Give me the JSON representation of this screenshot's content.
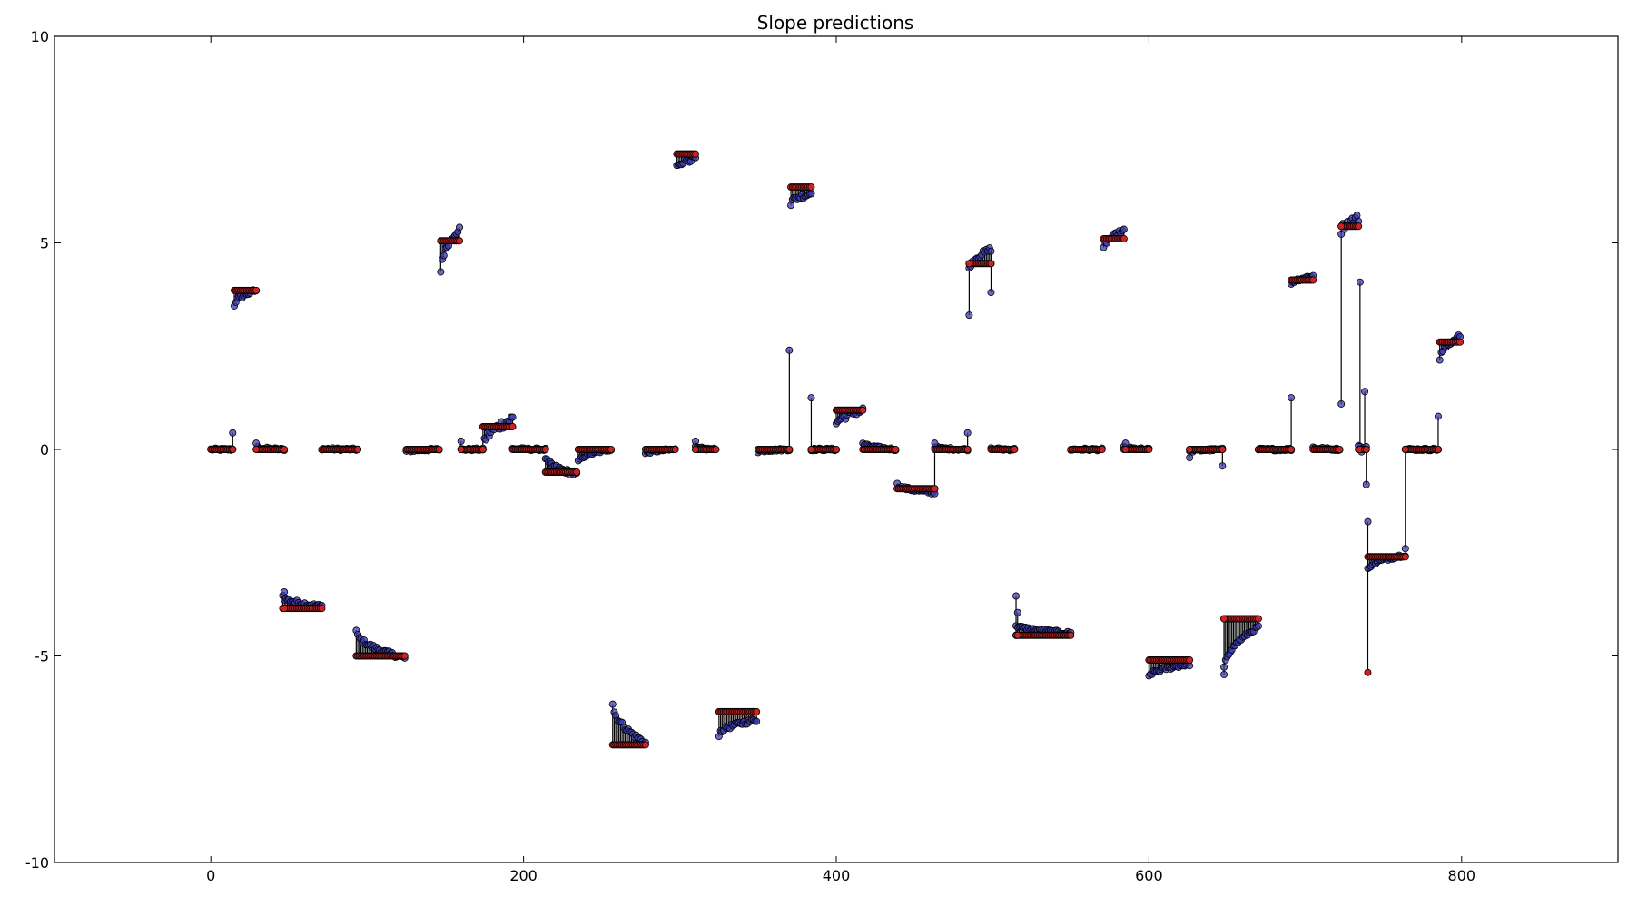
{
  "chart_data": {
    "type": "scatter",
    "title": "Slope predictions",
    "xlabel": "",
    "ylabel": "",
    "xlim": [
      -100,
      900
    ],
    "ylim": [
      -10,
      10
    ],
    "xticks": [
      0,
      200,
      400,
      600,
      800
    ],
    "yticks": [
      -10,
      -5,
      0,
      5,
      10
    ],
    "grid": false,
    "colors": {
      "true": "#cc2222",
      "predicted": "#3b3bb3",
      "stem": "#000000"
    },
    "segments": [
      {
        "x0": 0,
        "x1": 14,
        "value": 0.0,
        "pred_start": 0.0,
        "pred_end": 0.0,
        "noise": 0.03
      },
      {
        "x0": 15,
        "x1": 29,
        "value": 3.85,
        "pred_start": 3.5,
        "pred_end": 3.85,
        "noise": 0.05
      },
      {
        "x0": 30,
        "x1": 47,
        "value": 0.0,
        "pred_start": 0.05,
        "pred_end": 0.0,
        "noise": 0.03
      },
      {
        "x0": 46,
        "x1": 71,
        "value": -3.85,
        "pred_start": -3.55,
        "pred_end": -3.8,
        "noise": 0.05
      },
      {
        "x0": 71,
        "x1": 94,
        "value": 0.0,
        "pred_start": 0.02,
        "pred_end": 0.0,
        "noise": 0.03
      },
      {
        "x0": 93,
        "x1": 124,
        "value": -5.0,
        "pred_start": -4.4,
        "pred_end": -5.05,
        "noise": 0.05
      },
      {
        "x0": 125,
        "x1": 146,
        "value": 0.0,
        "pred_start": -0.05,
        "pred_end": 0.0,
        "noise": 0.03
      },
      {
        "x0": 147,
        "x1": 159,
        "value": 5.05,
        "pred_start": 4.3,
        "pred_end": 5.35,
        "noise": 0.05
      },
      {
        "x0": 160,
        "x1": 174,
        "value": 0.0,
        "pred_start": 0.0,
        "pred_end": 0.0,
        "noise": 0.03
      },
      {
        "x0": 174,
        "x1": 193,
        "value": 0.55,
        "pred_start": 0.05,
        "pred_end": 0.75,
        "noise": 0.12
      },
      {
        "x0": 193,
        "x1": 214,
        "value": 0.0,
        "pred_start": 0.02,
        "pred_end": 0.0,
        "noise": 0.03
      },
      {
        "x0": 214,
        "x1": 234,
        "value": -0.55,
        "pred_start": -0.2,
        "pred_end": -0.6,
        "noise": 0.06
      },
      {
        "x0": 235,
        "x1": 256,
        "value": 0.0,
        "pred_start": -0.3,
        "pred_end": 0.0,
        "noise": 0.03
      },
      {
        "x0": 257,
        "x1": 278,
        "value": -7.15,
        "pred_start": -6.15,
        "pred_end": -7.1,
        "noise": 0.06
      },
      {
        "x0": 278,
        "x1": 297,
        "value": 0.0,
        "pred_start": -0.1,
        "pred_end": 0.0,
        "noise": 0.03
      },
      {
        "x0": 298,
        "x1": 310,
        "value": 7.15,
        "pred_start": 6.85,
        "pred_end": 7.05,
        "noise": 0.06
      },
      {
        "x0": 310,
        "x1": 323,
        "value": 0.0,
        "pred_start": 0.05,
        "pred_end": 0.0,
        "noise": 0.03
      },
      {
        "x0": 325,
        "x1": 349,
        "value": -6.35,
        "pred_start": -6.9,
        "pred_end": -6.55,
        "noise": 0.05
      },
      {
        "x0": 350,
        "x1": 370,
        "value": 0.0,
        "pred_start": -0.05,
        "pred_end": 0.0,
        "noise": 0.03
      },
      {
        "x0": 371,
        "x1": 384,
        "value": 6.35,
        "pred_start": 5.95,
        "pred_end": 6.2,
        "noise": 0.07
      },
      {
        "x0": 384,
        "x1": 400,
        "value": 0.0,
        "pred_start": 0.0,
        "pred_end": 0.0,
        "noise": 0.03
      },
      {
        "x0": 400,
        "x1": 417,
        "value": 0.95,
        "pred_start": 0.6,
        "pred_end": 0.95,
        "noise": 0.08
      },
      {
        "x0": 417,
        "x1": 438,
        "value": 0.0,
        "pred_start": 0.15,
        "pred_end": 0.0,
        "noise": 0.03
      },
      {
        "x0": 439,
        "x1": 463,
        "value": -0.95,
        "pred_start": -0.85,
        "pred_end": -1.05,
        "noise": 0.04
      },
      {
        "x0": 463,
        "x1": 484,
        "value": 0.0,
        "pred_start": 0.05,
        "pred_end": 0.0,
        "noise": 0.03
      },
      {
        "x0": 485,
        "x1": 499,
        "value": 4.5,
        "pred_start": 4.35,
        "pred_end": 4.85,
        "noise": 0.06
      },
      {
        "x0": 499,
        "x1": 514,
        "value": 0.0,
        "pred_start": 0.02,
        "pred_end": 0.0,
        "noise": 0.03
      },
      {
        "x0": 515,
        "x1": 550,
        "value": -4.5,
        "pred_start": -4.25,
        "pred_end": -4.45,
        "noise": 0.04
      },
      {
        "x0": 550,
        "x1": 570,
        "value": 0.0,
        "pred_start": 0.0,
        "pred_end": 0.0,
        "noise": 0.03
      },
      {
        "x0": 571,
        "x1": 584,
        "value": 5.1,
        "pred_start": 4.85,
        "pred_end": 5.3,
        "noise": 0.05
      },
      {
        "x0": 584,
        "x1": 600,
        "value": 0.0,
        "pred_start": 0.05,
        "pred_end": 0.0,
        "noise": 0.03
      },
      {
        "x0": 600,
        "x1": 626,
        "value": -5.1,
        "pred_start": -5.5,
        "pred_end": -5.2,
        "noise": 0.04
      },
      {
        "x0": 626,
        "x1": 647,
        "value": 0.0,
        "pred_start": -0.05,
        "pred_end": 0.0,
        "noise": 0.03
      },
      {
        "x0": 648,
        "x1": 670,
        "value": -4.1,
        "pred_start": -5.3,
        "pred_end": -4.3,
        "noise": 0.04
      },
      {
        "x0": 670,
        "x1": 691,
        "value": 0.0,
        "pred_start": 0.0,
        "pred_end": 0.0,
        "noise": 0.03
      },
      {
        "x0": 691,
        "x1": 705,
        "value": 4.1,
        "pred_start": 4.0,
        "pred_end": 4.2,
        "noise": 0.04
      },
      {
        "x0": 705,
        "x1": 722,
        "value": 0.0,
        "pred_start": 0.05,
        "pred_end": 0.0,
        "noise": 0.03
      },
      {
        "x0": 723,
        "x1": 734,
        "value": 5.4,
        "pred_start": 5.3,
        "pred_end": 5.6,
        "noise": 0.1
      },
      {
        "x0": 734,
        "x1": 739,
        "value": 0.0,
        "pred_start": 0.1,
        "pred_end": 0.0,
        "noise": 0.1
      },
      {
        "x0": 740,
        "x1": 764,
        "value": -2.6,
        "pred_start": -2.9,
        "pred_end": -2.55,
        "noise": 0.04
      },
      {
        "x0": 764,
        "x1": 785,
        "value": 0.0,
        "pred_start": 0.0,
        "pred_end": 0.0,
        "noise": 0.03
      },
      {
        "x0": 786,
        "x1": 799,
        "value": 2.6,
        "pred_start": 2.15,
        "pred_end": 2.75,
        "noise": 0.05
      }
    ],
    "outliers": [
      {
        "x": 14,
        "true": 0.0,
        "pred": 0.4
      },
      {
        "x": 29,
        "true": 0.0,
        "pred": 0.15
      },
      {
        "x": 47,
        "true": -3.85,
        "pred": -3.45
      },
      {
        "x": 160,
        "true": 0.0,
        "pred": 0.2
      },
      {
        "x": 310,
        "true": 0.0,
        "pred": 0.2
      },
      {
        "x": 370,
        "true": 0.0,
        "pred": 2.4
      },
      {
        "x": 384,
        "true": 0.0,
        "pred": 1.25
      },
      {
        "x": 463,
        "true": -0.95,
        "pred": 0.15
      },
      {
        "x": 484,
        "true": 0.0,
        "pred": 0.4
      },
      {
        "x": 485,
        "true": 4.5,
        "pred": 3.25
      },
      {
        "x": 499,
        "true": 4.5,
        "pred": 3.8
      },
      {
        "x": 515,
        "true": -4.5,
        "pred": -3.55
      },
      {
        "x": 516,
        "true": -4.5,
        "pred": -3.95
      },
      {
        "x": 585,
        "true": 0.0,
        "pred": 0.15
      },
      {
        "x": 626,
        "true": 0.0,
        "pred": -0.2
      },
      {
        "x": 647,
        "true": 0.0,
        "pred": -0.4
      },
      {
        "x": 648,
        "true": -4.1,
        "pred": -5.45
      },
      {
        "x": 691,
        "true": 0.0,
        "pred": 1.25
      },
      {
        "x": 723,
        "true": 5.4,
        "pred": 1.1
      },
      {
        "x": 735,
        "true": 0.0,
        "pred": 4.05
      },
      {
        "x": 738,
        "true": 0.0,
        "pred": 1.4
      },
      {
        "x": 739,
        "true": 0.0,
        "pred": -0.85
      },
      {
        "x": 740,
        "true": -5.4,
        "pred": -1.75
      },
      {
        "x": 764,
        "true": 0.0,
        "pred": -2.4
      },
      {
        "x": 785,
        "true": 0.0,
        "pred": 0.8
      }
    ]
  }
}
